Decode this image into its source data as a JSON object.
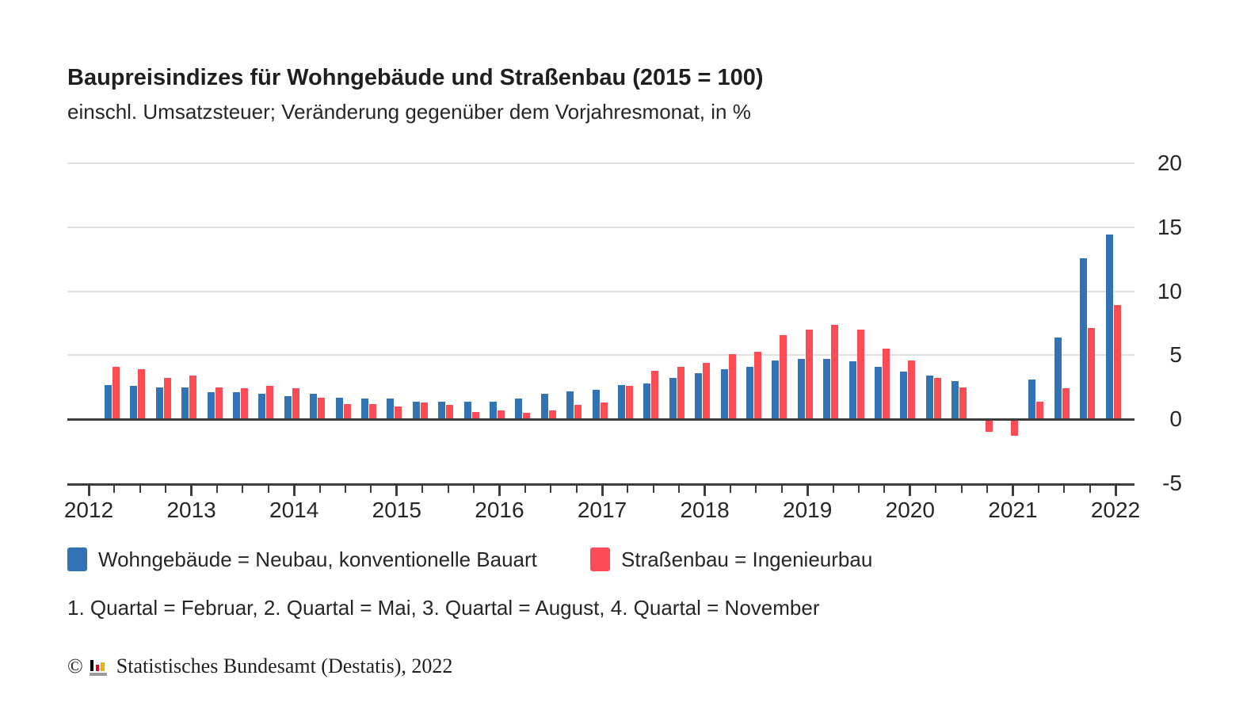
{
  "header": {
    "title": "Baupreisindizes für Wohngebäude und Straßenbau (2015 = 100)",
    "subtitle": "einschl. Umsatzsteuer; Veränderung gegenüber dem Vorjahresmonat, in %"
  },
  "chart_data": {
    "type": "bar",
    "unit": "%",
    "title": "Baupreisindizes für Wohngebäude und Straßenbau (2015 = 100)",
    "subtitle": "einschl. Umsatzsteuer; Veränderung gegenüber dem Vorjahresmonat, in %",
    "categories": [
      "2012-Q1",
      "2012-Q2",
      "2012-Q3",
      "2012-Q4",
      "2013-Q1",
      "2013-Q2",
      "2013-Q3",
      "2013-Q4",
      "2014-Q1",
      "2014-Q2",
      "2014-Q3",
      "2014-Q4",
      "2015-Q1",
      "2015-Q2",
      "2015-Q3",
      "2015-Q4",
      "2016-Q1",
      "2016-Q2",
      "2016-Q3",
      "2016-Q4",
      "2017-Q1",
      "2017-Q2",
      "2017-Q3",
      "2017-Q4",
      "2018-Q1",
      "2018-Q2",
      "2018-Q3",
      "2018-Q4",
      "2019-Q1",
      "2019-Q2",
      "2019-Q3",
      "2019-Q4",
      "2020-Q1",
      "2020-Q2",
      "2020-Q3",
      "2020-Q4",
      "2021-Q1",
      "2021-Q2",
      "2021-Q3",
      "2021-Q4"
    ],
    "series": [
      {
        "name": "Wohngebäude = Neubau, konventionelle Bauart",
        "color": "#3173b4",
        "values": [
          2.7,
          2.6,
          2.5,
          2.5,
          2.1,
          2.1,
          2.0,
          1.8,
          2.0,
          1.7,
          1.6,
          1.6,
          1.4,
          1.4,
          1.4,
          1.4,
          1.6,
          2.0,
          2.2,
          2.3,
          2.7,
          2.8,
          3.2,
          3.6,
          3.9,
          4.1,
          4.6,
          4.7,
          4.7,
          4.5,
          4.1,
          3.7,
          3.4,
          3.0,
          0.0,
          0.0,
          3.1,
          6.4,
          12.6,
          14.4
        ]
      },
      {
        "name": "Straßenbau = Ingenieurbau",
        "color": "#fb4b55",
        "values": [
          4.1,
          3.9,
          3.2,
          3.4,
          2.5,
          2.4,
          2.6,
          2.4,
          1.7,
          1.2,
          1.2,
          1.0,
          1.3,
          1.1,
          0.6,
          0.7,
          0.5,
          0.7,
          1.1,
          1.3,
          2.6,
          3.8,
          4.1,
          4.4,
          5.1,
          5.3,
          6.6,
          7.0,
          7.4,
          7.0,
          5.5,
          4.6,
          3.2,
          2.5,
          -1.0,
          -1.3,
          1.4,
          2.4,
          7.1,
          8.9
        ]
      }
    ],
    "year_labels": [
      "2012",
      "2013",
      "2014",
      "2015",
      "2016",
      "2017",
      "2018",
      "2019",
      "2020",
      "2021",
      "2022"
    ],
    "yticks": [
      20,
      15,
      10,
      5,
      0,
      -5
    ],
    "ylim": [
      -5,
      20
    ],
    "grid": "horizontal-only",
    "value_axis_side": "right",
    "legend_position": "bottom-left"
  },
  "legend": {
    "items": [
      {
        "label": "Wohngebäude = Neubau, konventionelle Bauart",
        "color": "#3173b4"
      },
      {
        "label": "Straßenbau = Ingenieurbau",
        "color": "#fb4b55"
      }
    ]
  },
  "footnote": "1. Quartal = Februar, 2. Quartal = Mai, 3. Quartal = August, 4. Quartal = November",
  "footer": {
    "copyright_symbol": "©",
    "source": "Statistisches Bundesamt (Destatis), 2022",
    "logo_colors": {
      "bar1": "#000000",
      "bar2": "#e10019",
      "bar3": "#f0b400",
      "base": "#9c9c9c"
    }
  },
  "colors": {
    "accent_blue": "#3173b4",
    "accent_red": "#fb4b55",
    "axis": "#3c3c3c",
    "grid": "#e0e0e0",
    "text": "#262626"
  }
}
